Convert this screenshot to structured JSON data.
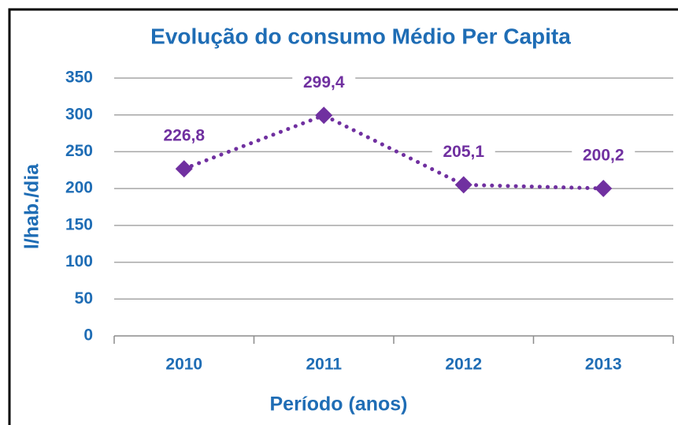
{
  "chart_data": {
    "type": "line",
    "title": "Evolução do consumo Médio Per Capita",
    "xlabel": "Período (anos)",
    "ylabel": "l/hab./dia",
    "categories": [
      "2010",
      "2011",
      "2012",
      "2013"
    ],
    "values": [
      226.8,
      299.4,
      205.1,
      200.2
    ],
    "value_labels": [
      "226,8",
      "299,4",
      "205,1",
      "200,2"
    ],
    "color": "#7030a0",
    "ylim": [
      0,
      350
    ],
    "yticks": [
      0,
      50,
      100,
      150,
      200,
      250,
      300,
      350
    ],
    "grid": true
  }
}
